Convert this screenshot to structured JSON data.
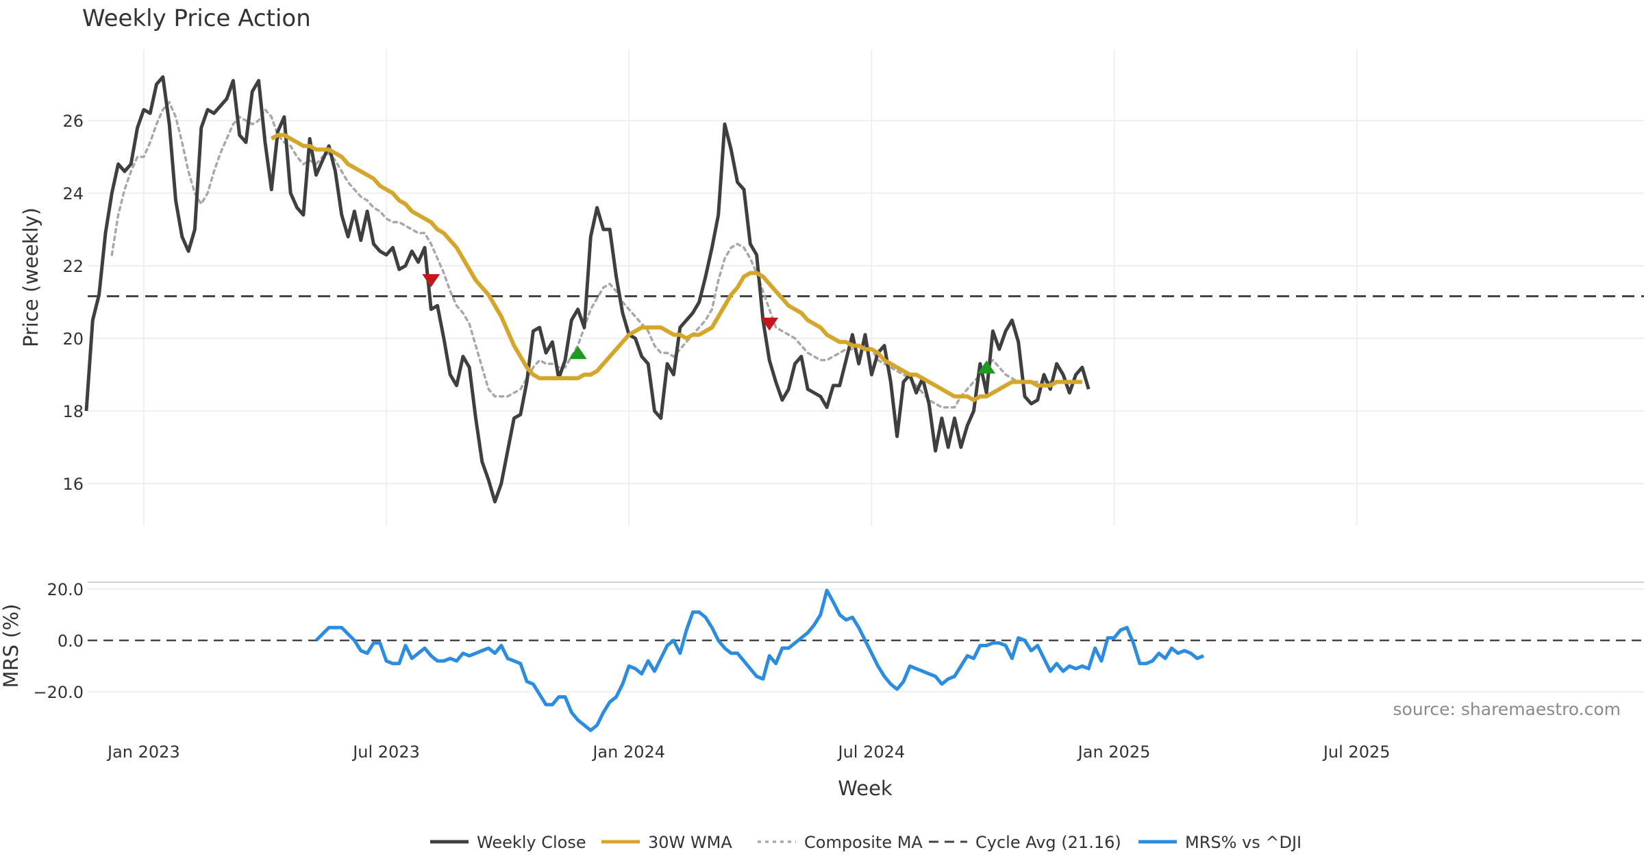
{
  "chart_data": {
    "type": "line",
    "title": "Weekly Price Action",
    "source": "source: sharemaestro.com",
    "xlabel": "Week",
    "x_ticks": [
      "Jan 2023",
      "Jul 2023",
      "Jan 2024",
      "Jul 2024",
      "Jan 2025",
      "Jul 2025"
    ],
    "price_panel": {
      "ylabel": "Price (weekly)",
      "ylim": [
        14.8,
        28.0
      ],
      "y_ticks": [
        "16",
        "18",
        "20",
        "22",
        "24",
        "26"
      ],
      "y_tick_values": [
        16,
        18,
        20,
        22,
        24,
        26
      ]
    },
    "mrs_panel": {
      "ylabel": "MRS (%)",
      "ylim": [
        -36,
        24
      ],
      "y_ticks": [
        "20.0",
        "0.0",
        "−20.0"
      ],
      "y_tick_values": [
        20,
        0,
        -20
      ]
    },
    "cycle_avg": 21.16,
    "week_start": 0,
    "weekly_close": [
      18.0,
      20.5,
      21.2,
      22.9,
      24.0,
      24.8,
      24.6,
      24.8,
      25.8,
      26.3,
      26.2,
      27.0,
      27.2,
      25.9,
      23.8,
      22.8,
      22.4,
      23.0,
      25.8,
      26.3,
      26.2,
      26.4,
      26.6,
      27.1,
      25.6,
      25.4,
      26.8,
      27.1,
      25.4,
      24.1,
      25.7,
      26.1,
      24.0,
      23.6,
      23.4,
      25.5,
      24.5,
      24.9,
      25.3,
      24.6,
      23.4,
      22.8,
      23.5,
      22.7,
      23.5,
      22.6,
      22.4,
      22.3,
      22.5,
      21.9,
      22.0,
      22.4,
      22.1,
      22.5,
      20.8,
      20.9,
      20.0,
      19.0,
      18.7,
      19.5,
      19.2,
      17.8,
      16.6,
      16.1,
      15.5,
      16.0,
      16.9,
      17.8,
      17.9,
      18.8,
      20.2,
      20.3,
      19.6,
      19.9,
      18.9,
      19.4,
      20.5,
      20.8,
      20.3,
      22.8,
      23.6,
      23.0,
      23.0,
      21.7,
      20.7,
      20.1,
      20.0,
      19.5,
      19.3,
      18.0,
      17.8,
      19.3,
      19.0,
      20.3,
      20.5,
      20.7,
      21.0,
      21.7,
      22.5,
      23.4,
      25.9,
      25.2,
      24.3,
      24.1,
      22.6,
      22.3,
      20.5,
      19.4,
      18.8,
      18.3,
      18.6,
      19.3,
      19.5,
      18.6,
      18.5,
      18.4,
      18.1,
      18.7,
      18.7,
      19.4,
      20.1,
      19.3,
      20.1,
      19.0,
      19.6,
      19.8,
      18.8,
      17.3,
      18.8,
      19.0,
      18.5,
      18.9,
      18.2,
      16.9,
      17.8,
      17.0,
      17.8,
      17.0,
      17.6,
      18.0,
      19.3,
      18.5,
      20.2,
      19.7,
      20.2,
      20.5,
      19.9,
      18.4,
      18.2,
      18.3,
      19.0,
      18.6,
      19.3,
      19.0,
      18.5,
      19.0,
      19.2,
      18.6
    ],
    "wma_30w": [
      null,
      null,
      null,
      null,
      null,
      null,
      null,
      null,
      null,
      null,
      null,
      null,
      null,
      null,
      null,
      null,
      null,
      null,
      null,
      null,
      null,
      null,
      null,
      null,
      null,
      null,
      null,
      null,
      null,
      25.5,
      25.6,
      25.6,
      25.5,
      25.4,
      25.3,
      25.3,
      25.2,
      25.2,
      25.2,
      25.1,
      25.0,
      24.8,
      24.7,
      24.6,
      24.5,
      24.4,
      24.2,
      24.1,
      24.0,
      23.8,
      23.7,
      23.5,
      23.4,
      23.3,
      23.2,
      23.0,
      22.9,
      22.7,
      22.5,
      22.2,
      21.9,
      21.6,
      21.4,
      21.2,
      20.9,
      20.6,
      20.2,
      19.8,
      19.5,
      19.2,
      19.0,
      18.9,
      18.9,
      18.9,
      18.9,
      18.9,
      18.9,
      18.9,
      19.0,
      19.0,
      19.1,
      19.3,
      19.5,
      19.7,
      19.9,
      20.1,
      20.2,
      20.3,
      20.3,
      20.3,
      20.3,
      20.2,
      20.1,
      20.1,
      20.0,
      20.1,
      20.1,
      20.2,
      20.3,
      20.6,
      20.9,
      21.2,
      21.4,
      21.7,
      21.8,
      21.8,
      21.7,
      21.5,
      21.3,
      21.1,
      20.9,
      20.8,
      20.7,
      20.5,
      20.4,
      20.3,
      20.1,
      20.0,
      19.9,
      19.9,
      19.8,
      19.8,
      19.7,
      19.7,
      19.6,
      19.4,
      19.3,
      19.2,
      19.1,
      19.0,
      19.0,
      18.9,
      18.8,
      18.7,
      18.6,
      18.5,
      18.4,
      18.4,
      18.4,
      18.3,
      18.4,
      18.4,
      18.5,
      18.6,
      18.7,
      18.8,
      18.8,
      18.8,
      18.8,
      18.7,
      18.7,
      18.7,
      18.8,
      18.8,
      18.8,
      18.8,
      18.8
    ],
    "composite_ma": [
      null,
      null,
      null,
      null,
      22.3,
      23.4,
      24.1,
      24.6,
      25.0,
      25.0,
      25.4,
      25.9,
      26.3,
      26.5,
      26.1,
      25.4,
      24.6,
      24.0,
      23.7,
      24.0,
      24.6,
      25.1,
      25.5,
      25.9,
      26.1,
      26.0,
      25.9,
      26.0,
      26.3,
      26.1,
      25.6,
      25.4,
      25.3,
      25.0,
      24.8,
      24.9,
      24.8,
      25.0,
      25.1,
      24.9,
      24.6,
      24.3,
      24.1,
      23.9,
      23.8,
      23.6,
      23.5,
      23.3,
      23.2,
      23.2,
      23.1,
      23.0,
      22.9,
      22.9,
      22.6,
      22.2,
      21.8,
      21.3,
      20.9,
      20.7,
      20.4,
      19.8,
      19.2,
      18.6,
      18.4,
      18.4,
      18.4,
      18.5,
      18.6,
      18.9,
      19.2,
      19.4,
      19.3,
      19.3,
      19.2,
      19.2,
      19.5,
      19.8,
      20.3,
      20.8,
      21.1,
      21.4,
      21.5,
      21.3,
      21.0,
      20.8,
      20.6,
      20.4,
      20.2,
      19.8,
      19.6,
      19.6,
      19.5,
      19.7,
      19.9,
      20.1,
      20.3,
      20.5,
      20.8,
      21.6,
      22.2,
      22.5,
      22.6,
      22.5,
      22.2,
      21.8,
      21.3,
      20.8,
      20.3,
      20.2,
      20.1,
      20.0,
      19.8,
      19.6,
      19.5,
      19.4,
      19.4,
      19.5,
      19.6,
      19.7,
      19.7,
      19.8,
      19.8,
      19.7,
      19.4,
      19.3,
      19.2,
      19.1,
      19.0,
      18.9,
      18.7,
      18.5,
      18.3,
      18.2,
      18.1,
      18.1,
      18.1,
      18.4,
      18.6,
      18.8,
      19.0,
      19.2,
      19.4,
      19.2,
      19.0,
      18.9,
      18.8,
      18.8,
      18.8,
      18.8,
      18.8,
      18.8,
      18.8,
      18.8
    ],
    "mrs_vs_dji": [
      null,
      null,
      null,
      null,
      null,
      null,
      null,
      null,
      null,
      null,
      null,
      null,
      null,
      null,
      null,
      null,
      null,
      null,
      null,
      null,
      null,
      null,
      null,
      null,
      null,
      null,
      null,
      null,
      null,
      null,
      null,
      null,
      null,
      null,
      null,
      null,
      null,
      null,
      null,
      null,
      null,
      null,
      null,
      null,
      null,
      null,
      null,
      null,
      null,
      null,
      null,
      null,
      null,
      null,
      null,
      null,
      null,
      null,
      null,
      null,
      null,
      null,
      null,
      null,
      null,
      null,
      null,
      null,
      null,
      null,
      null,
      null,
      null,
      null,
      null,
      null,
      null,
      null,
      null,
      null,
      null,
      null,
      null,
      null,
      null,
      null,
      null,
      null,
      null,
      null,
      null,
      null,
      null,
      null,
      null,
      null,
      null,
      null,
      null,
      null,
      null,
      null,
      null,
      null,
      null,
      null,
      null,
      null,
      null,
      null,
      null,
      null,
      null,
      null,
      null,
      null,
      null,
      null,
      null,
      null,
      null,
      null,
      null,
      null,
      null,
      null,
      null,
      null,
      null,
      null,
      null,
      null,
      null,
      null,
      null,
      null,
      null,
      null,
      null,
      null,
      null,
      null,
      null,
      null,
      null,
      null,
      null,
      null,
      null,
      null,
      null,
      null,
      null,
      null,
      null,
      null,
      null,
      null,
      null
    ],
    "sell_signals": [
      {
        "week": 54,
        "price": 21.6
      },
      {
        "week": 107,
        "price": 20.4
      }
    ],
    "buy_signals": [
      {
        "week": 77,
        "price": 19.6
      },
      {
        "week": 141,
        "price": 19.2
      }
    ],
    "legend": [
      {
        "label": "Weekly Close",
        "style": "solid",
        "color": "#3f3f3f"
      },
      {
        "label": "30W WMA",
        "style": "solid",
        "color": "#d4a72c"
      },
      {
        "label": "Composite MA",
        "style": "dotted",
        "color": "#a8a8a8"
      },
      {
        "label": "Cycle Avg (21.16)",
        "style": "dashed",
        "color": "#444444"
      },
      {
        "label": "MRS% vs ^DJI",
        "style": "solid",
        "color": "#2b8ce0"
      }
    ],
    "colors": {
      "close": "#3f3f3f",
      "wma": "#d4a72c",
      "composite": "#a8a8a8",
      "cycle": "#444444",
      "mrs": "#2b8ce0",
      "sell": "#c4161c",
      "buy": "#1e9b1e",
      "grid": "#ececec"
    }
  }
}
